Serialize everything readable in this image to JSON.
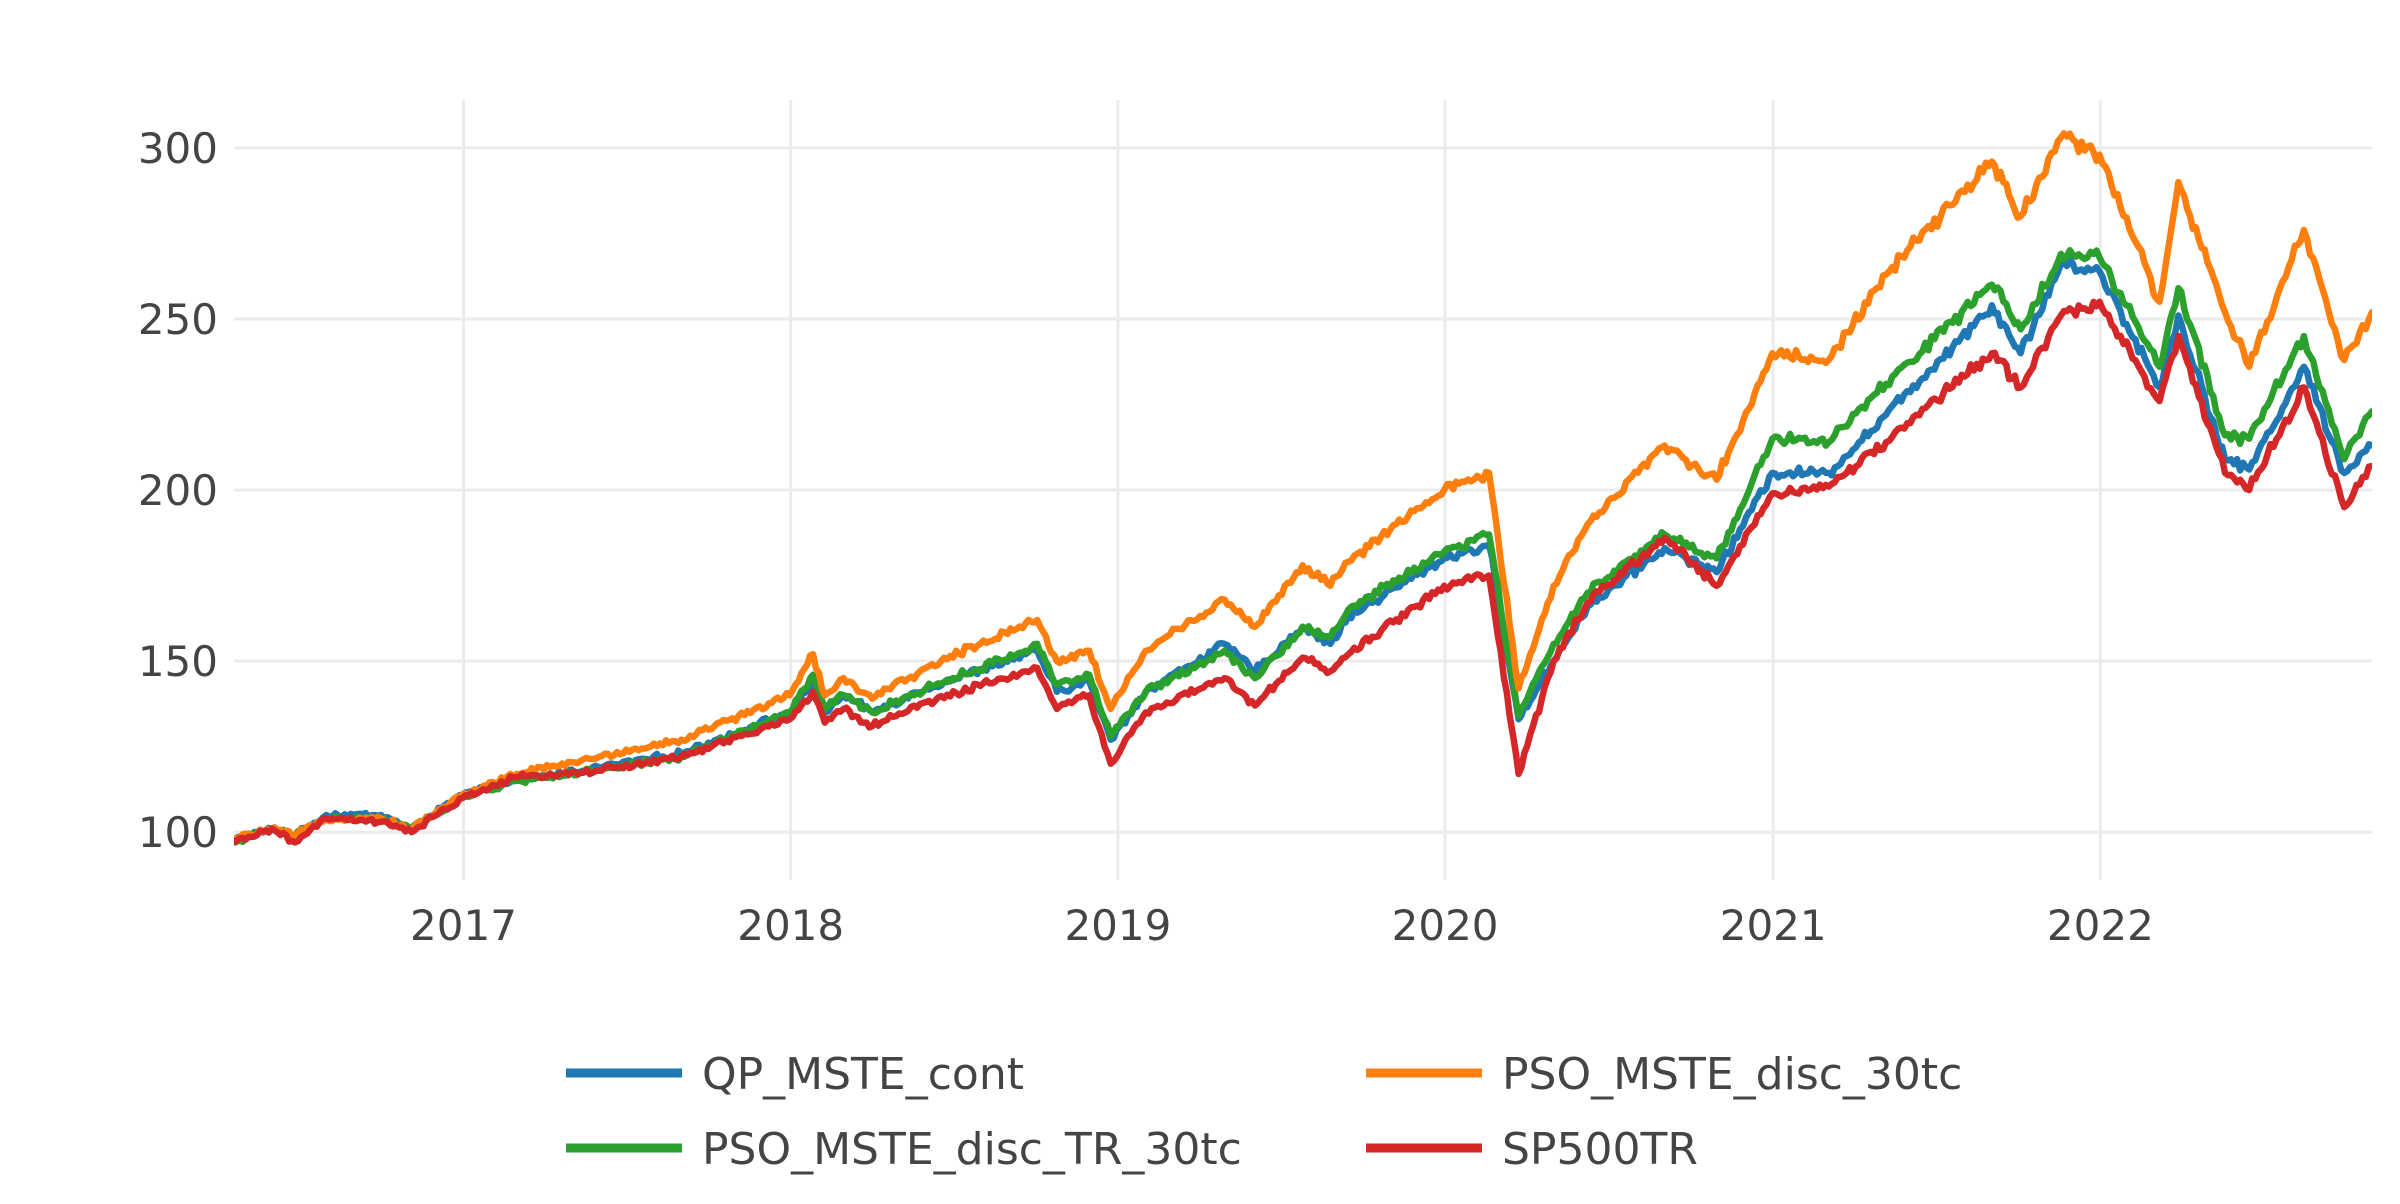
{
  "chart_data": {
    "type": "line",
    "title": "",
    "xlabel": "",
    "ylabel": "",
    "x_axis": {
      "type": "date",
      "range": [
        "2016-04-20",
        "2022-10-31"
      ],
      "ticks": [
        {
          "value": "2017-01-01",
          "label": "2017"
        },
        {
          "value": "2018-01-01",
          "label": "2018"
        },
        {
          "value": "2019-01-01",
          "label": "2019"
        },
        {
          "value": "2020-01-01",
          "label": "2020"
        },
        {
          "value": "2021-01-01",
          "label": "2021"
        },
        {
          "value": "2022-01-01",
          "label": "2022"
        }
      ]
    },
    "y_axis": {
      "range": [
        86,
        314
      ],
      "ticks": [
        {
          "value": 100,
          "label": "100"
        },
        {
          "value": 150,
          "label": "150"
        },
        {
          "value": 200,
          "label": "200"
        },
        {
          "value": 250,
          "label": "250"
        },
        {
          "value": 300,
          "label": "300"
        }
      ]
    },
    "grid": true,
    "legend": {
      "placement": "bottom-center",
      "columns": 2,
      "order": [
        "QP_MSTE_cont",
        "PSO_MSTE_disc_30tc",
        "PSO_MSTE_disc_TR_30tc",
        "SP500TR"
      ]
    },
    "series": [
      {
        "name": "QP_MSTE_cont",
        "color": "#1f77b4",
        "points": [
          [
            "2016-04-20",
            98
          ],
          [
            "2016-06-01",
            101
          ],
          [
            "2016-06-27",
            99
          ],
          [
            "2016-08-01",
            105
          ],
          [
            "2016-10-01",
            105
          ],
          [
            "2016-11-04",
            101
          ],
          [
            "2016-12-31",
            111
          ],
          [
            "2017-03-01",
            115
          ],
          [
            "2017-06-01",
            119
          ],
          [
            "2017-09-01",
            123
          ],
          [
            "2017-12-31",
            135
          ],
          [
            "2018-01-26",
            143
          ],
          [
            "2018-02-08",
            135
          ],
          [
            "2018-03-01",
            140
          ],
          [
            "2018-04-02",
            135
          ],
          [
            "2018-06-01",
            142
          ],
          [
            "2018-09-20",
            152
          ],
          [
            "2018-10-03",
            153
          ],
          [
            "2018-10-25",
            141
          ],
          [
            "2018-11-30",
            144
          ],
          [
            "2018-12-24",
            127
          ],
          [
            "2019-02-01",
            141
          ],
          [
            "2019-04-30",
            155
          ],
          [
            "2019-06-03",
            147
          ],
          [
            "2019-07-26",
            160
          ],
          [
            "2019-08-26",
            155
          ],
          [
            "2019-09-15",
            163
          ],
          [
            "2019-12-31",
            180
          ],
          [
            "2020-02-19",
            184
          ],
          [
            "2020-03-23",
            133
          ],
          [
            "2020-05-01",
            150
          ],
          [
            "2020-06-08",
            166
          ],
          [
            "2020-09-02",
            183
          ],
          [
            "2020-10-30",
            176
          ],
          [
            "2020-12-31",
            205
          ],
          [
            "2021-03-04",
            205
          ],
          [
            "2021-05-07",
            222
          ],
          [
            "2021-09-02",
            254
          ],
          [
            "2021-10-04",
            240
          ],
          [
            "2021-11-18",
            266
          ],
          [
            "2021-12-31",
            264
          ],
          [
            "2022-03-08",
            230
          ],
          [
            "2022-03-29",
            251
          ],
          [
            "2022-05-20",
            209
          ],
          [
            "2022-06-16",
            206
          ],
          [
            "2022-08-16",
            236
          ],
          [
            "2022-09-30",
            205
          ],
          [
            "2022-10-31",
            213
          ]
        ]
      },
      {
        "name": "PSO_MSTE_disc_30tc",
        "color": "#ff7f0e",
        "points": [
          [
            "2016-04-20",
            98
          ],
          [
            "2016-06-01",
            101
          ],
          [
            "2016-06-27",
            99
          ],
          [
            "2016-08-01",
            104
          ],
          [
            "2016-10-01",
            104
          ],
          [
            "2016-11-04",
            101
          ],
          [
            "2016-12-31",
            111
          ],
          [
            "2017-03-01",
            117
          ],
          [
            "2017-06-01",
            122
          ],
          [
            "2017-09-01",
            127
          ],
          [
            "2017-12-31",
            140
          ],
          [
            "2018-01-26",
            152
          ],
          [
            "2018-02-08",
            140
          ],
          [
            "2018-03-01",
            145
          ],
          [
            "2018-04-02",
            139
          ],
          [
            "2018-06-01",
            148
          ],
          [
            "2018-09-20",
            161
          ],
          [
            "2018-10-03",
            162
          ],
          [
            "2018-10-25",
            150
          ],
          [
            "2018-11-30",
            153
          ],
          [
            "2018-12-24",
            136
          ],
          [
            "2019-02-01",
            153
          ],
          [
            "2019-04-30",
            168
          ],
          [
            "2019-06-03",
            160
          ],
          [
            "2019-07-26",
            178
          ],
          [
            "2019-08-26",
            172
          ],
          [
            "2019-09-15",
            179
          ],
          [
            "2019-12-31",
            200
          ],
          [
            "2020-02-19",
            205
          ],
          [
            "2020-03-23",
            142
          ],
          [
            "2020-05-01",
            172
          ],
          [
            "2020-06-08",
            190
          ],
          [
            "2020-09-02",
            213
          ],
          [
            "2020-10-30",
            203
          ],
          [
            "2020-12-31",
            240
          ],
          [
            "2021-03-04",
            238
          ],
          [
            "2021-05-07",
            263
          ],
          [
            "2021-09-02",
            296
          ],
          [
            "2021-10-04",
            280
          ],
          [
            "2021-11-18",
            303
          ],
          [
            "2021-12-31",
            298
          ],
          [
            "2022-03-08",
            255
          ],
          [
            "2022-03-29",
            290
          ],
          [
            "2022-05-20",
            252
          ],
          [
            "2022-06-16",
            236
          ],
          [
            "2022-08-16",
            276
          ],
          [
            "2022-09-30",
            238
          ],
          [
            "2022-10-31",
            252
          ]
        ]
      },
      {
        "name": "PSO_MSTE_disc_TR_30tc",
        "color": "#2ca02c",
        "points": [
          [
            "2016-04-20",
            97
          ],
          [
            "2016-06-01",
            101
          ],
          [
            "2016-06-27",
            99
          ],
          [
            "2016-08-01",
            104
          ],
          [
            "2016-10-01",
            104
          ],
          [
            "2016-11-04",
            101
          ],
          [
            "2016-12-31",
            110
          ],
          [
            "2017-03-01",
            115
          ],
          [
            "2017-06-01",
            118
          ],
          [
            "2017-09-01",
            122
          ],
          [
            "2017-12-31",
            135
          ],
          [
            "2018-01-26",
            146
          ],
          [
            "2018-02-08",
            136
          ],
          [
            "2018-03-01",
            140
          ],
          [
            "2018-04-02",
            135
          ],
          [
            "2018-06-01",
            142
          ],
          [
            "2018-09-20",
            153
          ],
          [
            "2018-10-03",
            155
          ],
          [
            "2018-10-25",
            143
          ],
          [
            "2018-11-30",
            146
          ],
          [
            "2018-12-24",
            128
          ],
          [
            "2019-02-01",
            141
          ],
          [
            "2019-04-30",
            153
          ],
          [
            "2019-06-03",
            145
          ],
          [
            "2019-07-26",
            160
          ],
          [
            "2019-08-26",
            157
          ],
          [
            "2019-09-15",
            165
          ],
          [
            "2019-12-31",
            182
          ],
          [
            "2020-02-19",
            187
          ],
          [
            "2020-03-23",
            134
          ],
          [
            "2020-05-01",
            155
          ],
          [
            "2020-06-08",
            170
          ],
          [
            "2020-09-02",
            187
          ],
          [
            "2020-10-30",
            180
          ],
          [
            "2020-12-31",
            215
          ],
          [
            "2021-03-04",
            214
          ],
          [
            "2021-05-07",
            231
          ],
          [
            "2021-09-02",
            260
          ],
          [
            "2021-10-04",
            247
          ],
          [
            "2021-11-18",
            269
          ],
          [
            "2021-12-31",
            268
          ],
          [
            "2022-03-08",
            236
          ],
          [
            "2022-03-29",
            259
          ],
          [
            "2022-05-20",
            216
          ],
          [
            "2022-06-16",
            215
          ],
          [
            "2022-08-16",
            245
          ],
          [
            "2022-09-30",
            209
          ],
          [
            "2022-10-31",
            223
          ]
        ]
      },
      {
        "name": "SP500TR",
        "color": "#d62728",
        "points": [
          [
            "2016-04-20",
            97
          ],
          [
            "2016-06-01",
            101
          ],
          [
            "2016-06-27",
            97
          ],
          [
            "2016-08-01",
            104
          ],
          [
            "2016-10-01",
            103
          ],
          [
            "2016-11-04",
            100
          ],
          [
            "2016-12-31",
            110
          ],
          [
            "2017-03-01",
            116
          ],
          [
            "2017-06-01",
            118
          ],
          [
            "2017-09-01",
            122
          ],
          [
            "2017-12-31",
            133
          ],
          [
            "2018-01-26",
            141
          ],
          [
            "2018-02-08",
            132
          ],
          [
            "2018-03-01",
            136
          ],
          [
            "2018-04-02",
            131
          ],
          [
            "2018-06-01",
            138
          ],
          [
            "2018-09-20",
            147
          ],
          [
            "2018-10-03",
            148
          ],
          [
            "2018-10-25",
            136
          ],
          [
            "2018-11-30",
            140
          ],
          [
            "2018-12-24",
            120
          ],
          [
            "2019-02-01",
            135
          ],
          [
            "2019-04-30",
            145
          ],
          [
            "2019-06-03",
            137
          ],
          [
            "2019-07-26",
            151
          ],
          [
            "2019-08-26",
            147
          ],
          [
            "2019-09-15",
            152
          ],
          [
            "2019-12-31",
            172
          ],
          [
            "2020-02-19",
            175
          ],
          [
            "2020-03-23",
            117
          ],
          [
            "2020-05-01",
            150
          ],
          [
            "2020-06-08",
            167
          ],
          [
            "2020-09-02",
            186
          ],
          [
            "2020-10-30",
            172
          ],
          [
            "2020-12-31",
            199
          ],
          [
            "2021-03-04",
            201
          ],
          [
            "2021-05-07",
            214
          ],
          [
            "2021-09-02",
            240
          ],
          [
            "2021-10-04",
            230
          ],
          [
            "2021-11-18",
            251
          ],
          [
            "2021-12-31",
            255
          ],
          [
            "2022-03-08",
            226
          ],
          [
            "2022-03-29",
            245
          ],
          [
            "2022-05-20",
            205
          ],
          [
            "2022-06-16",
            200
          ],
          [
            "2022-08-16",
            230
          ],
          [
            "2022-09-30",
            195
          ],
          [
            "2022-10-31",
            207
          ]
        ]
      }
    ]
  }
}
